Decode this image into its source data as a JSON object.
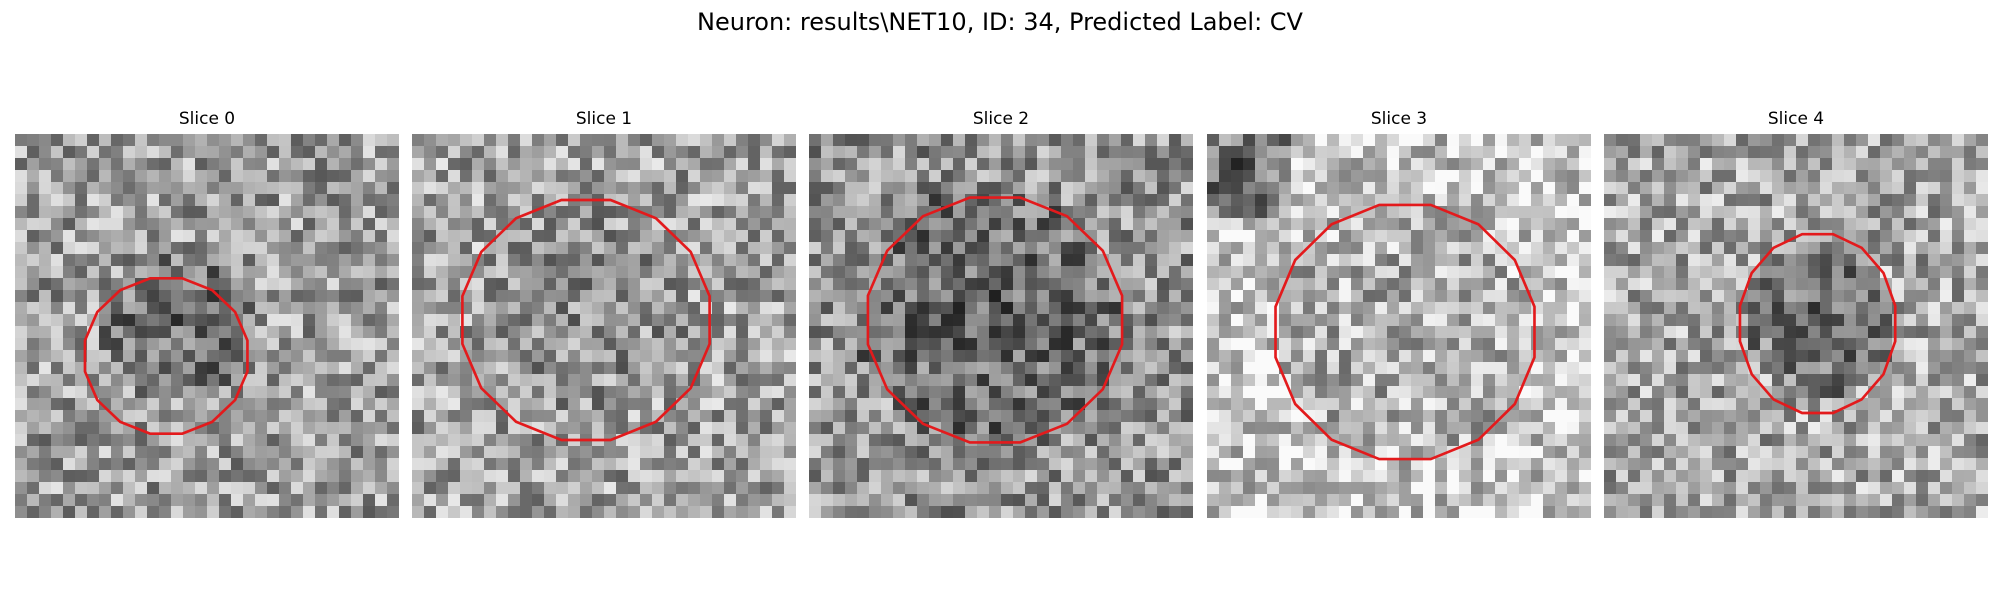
{
  "figure": {
    "title": "Neuron: results\\NET10, ID: 34, Predicted Label: CV"
  },
  "panels": [
    {
      "title": "Slice 0"
    },
    {
      "title": "Slice 1"
    },
    {
      "title": "Slice 2"
    },
    {
      "title": "Slice 3"
    },
    {
      "title": "Slice 4"
    }
  ],
  "colors": {
    "contour": "#e31a1c",
    "background": "#ffffff"
  }
}
